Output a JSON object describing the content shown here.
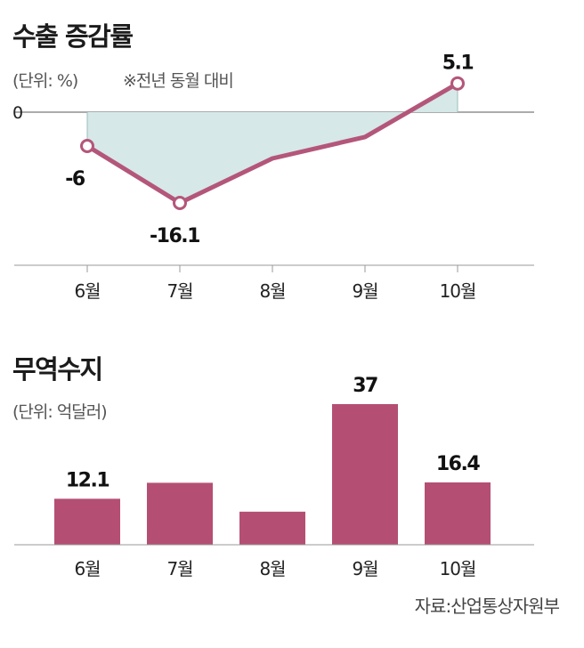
{
  "chart_data": [
    {
      "type": "line",
      "title": "수출 증감률",
      "unit_note": "(단위: %)",
      "note": "※전년 동월 대비",
      "zero_label": "0",
      "categories": [
        "6월",
        "7월",
        "8월",
        "9월",
        "10월"
      ],
      "series": [
        {
          "values": [
            -6,
            -16.1,
            -8.2,
            -4.4,
            5.1
          ]
        }
      ],
      "data_labels": [
        {
          "index": 0,
          "text": "-6"
        },
        {
          "index": 1,
          "text": "-16.1"
        },
        {
          "index": 4,
          "text": "5.1"
        }
      ],
      "ylim": [
        -16.1,
        5.1
      ],
      "colors": {
        "line": "#b4567a",
        "area": "#d6e8e8"
      }
    },
    {
      "type": "bar",
      "title": "무역수지",
      "unit_note": "(단위: 억달러)",
      "categories": [
        "6월",
        "7월",
        "8월",
        "9월",
        "10월"
      ],
      "values": [
        12.1,
        16.3,
        8.7,
        37,
        16.4
      ],
      "data_labels": [
        {
          "index": 0,
          "text": "12.1"
        },
        {
          "index": 3,
          "text": "37"
        },
        {
          "index": 4,
          "text": "16.4"
        }
      ],
      "ylim": [
        0,
        37
      ],
      "colors": {
        "bar": "#b44f73"
      }
    }
  ],
  "source": "자료:산업통상자원부"
}
